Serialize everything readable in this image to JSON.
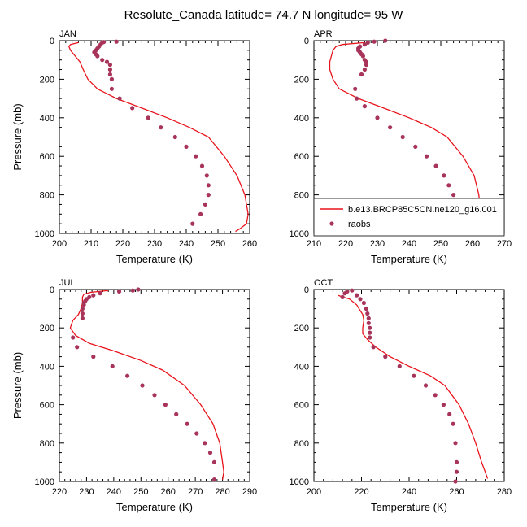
{
  "title": "Resolute_Canada  latitude= 74.7 N longitude= 95 W",
  "legend": {
    "model_label": "b.e13.BRCP85C5CN.ne120_g16.001",
    "obs_label": "raobs"
  },
  "colors": {
    "model": "#e8141c",
    "obs": "#a8345a"
  },
  "chart_data": [
    {
      "type": "line",
      "panel_title": "JAN",
      "xlabel": "Temperature (K)",
      "ylabel": "Pressure (mb)",
      "xlim": [
        200,
        260
      ],
      "ylim": [
        1000,
        0
      ],
      "xticks": [
        200,
        210,
        220,
        230,
        240,
        250,
        260
      ],
      "yticks": [
        0,
        200,
        400,
        600,
        800,
        1000
      ],
      "model": {
        "temperature": [
          206,
          203.5,
          203,
          203.5,
          205,
          206.5,
          207.5,
          209,
          212,
          218,
          226,
          234,
          241,
          247,
          252,
          256,
          258.5,
          259.5,
          259,
          257,
          255.5
        ],
        "pressure": [
          10,
          20,
          30,
          50,
          80,
          110,
          150,
          200,
          250,
          300,
          350,
          400,
          450,
          500,
          600,
          700,
          800,
          900,
          950,
          975,
          990
        ]
      },
      "obs": {
        "temperature": [
          218,
          214,
          213.5,
          213,
          212.5,
          212,
          211.5,
          211,
          211.5,
          212,
          213.5,
          215,
          216,
          216,
          216,
          216.5,
          216.5,
          219,
          223,
          228,
          232,
          236.5,
          240,
          243,
          245,
          246.5,
          247,
          247,
          246,
          244.5,
          242
        ],
        "pressure": [
          5,
          7,
          10,
          20,
          30,
          40,
          50,
          60,
          70,
          80,
          100,
          110,
          125,
          150,
          175,
          200,
          250,
          300,
          350,
          400,
          450,
          500,
          550,
          600,
          650,
          700,
          750,
          800,
          850,
          900,
          950
        ]
      }
    },
    {
      "type": "line",
      "panel_title": "APR",
      "xlabel": "Temperature (K)",
      "ylabel": "",
      "xlim": [
        210,
        270
      ],
      "ylim": [
        1000,
        0
      ],
      "xticks": [
        210,
        220,
        230,
        240,
        250,
        260,
        270
      ],
      "yticks": [
        0,
        200,
        400,
        600,
        800,
        1000
      ],
      "model": {
        "temperature": [
          226,
          219,
          217,
          216,
          215.5,
          215,
          215,
          216,
          218,
          224,
          232,
          240,
          247,
          252,
          257,
          260.5,
          262,
          262.5,
          262,
          260,
          258.5
        ],
        "pressure": [
          10,
          20,
          30,
          50,
          80,
          110,
          150,
          200,
          250,
          300,
          350,
          400,
          450,
          500,
          600,
          700,
          800,
          900,
          950,
          975,
          990
        ]
      },
      "obs": {
        "temperature": [
          232.5,
          229,
          227,
          226,
          224.5,
          224,
          224,
          224.5,
          225,
          225.5,
          226,
          226.5,
          226.5,
          226,
          225,
          223,
          223.5,
          226,
          230,
          234,
          238,
          242,
          245.5,
          248.5,
          251,
          252.5,
          254,
          254.5,
          254,
          253,
          251
        ],
        "pressure": [
          0,
          5,
          10,
          20,
          30,
          40,
          50,
          60,
          70,
          80,
          100,
          110,
          125,
          150,
          175,
          250,
          300,
          340,
          400,
          450,
          500,
          550,
          600,
          650,
          700,
          750,
          800,
          850,
          900,
          950,
          1000
        ]
      }
    },
    {
      "type": "line",
      "panel_title": "JUL",
      "xlabel": "Temperature (K)",
      "ylabel": "Pressure (mb)",
      "xlim": [
        220,
        290
      ],
      "ylim": [
        1000,
        0
      ],
      "xticks": [
        220,
        230,
        240,
        250,
        260,
        270,
        280,
        290
      ],
      "yticks": [
        0,
        200,
        400,
        600,
        800,
        1000
      ],
      "model": {
        "temperature": [
          238,
          231.5,
          229,
          228.5,
          228.5,
          228,
          227,
          225,
          224,
          226,
          231,
          240,
          250,
          258,
          266,
          272,
          276.5,
          279,
          280,
          280.5,
          280
        ],
        "pressure": [
          5,
          15,
          25,
          40,
          70,
          100,
          130,
          160,
          200,
          240,
          280,
          320,
          370,
          420,
          500,
          600,
          700,
          800,
          900,
          950,
          990
        ]
      },
      "obs": {
        "temperature": [
          249,
          247,
          242,
          235,
          232.5,
          231,
          230,
          229.5,
          229,
          229,
          228.5,
          228.5,
          228.5,
          225,
          226.5,
          232.5,
          239.5,
          245,
          250.5,
          255,
          259,
          263,
          267,
          270.5,
          273.5,
          275.5,
          277,
          277
        ],
        "pressure": [
          0,
          5,
          10,
          20,
          30,
          40,
          50,
          60,
          70,
          80,
          100,
          125,
          150,
          250,
          300,
          350,
          400,
          450,
          500,
          550,
          600,
          650,
          700,
          750,
          800,
          850,
          900,
          990
        ]
      }
    },
    {
      "type": "line",
      "panel_title": "OCT",
      "xlabel": "Temperature (K)",
      "ylabel": "",
      "xlim": [
        200,
        280
      ],
      "ylim": [
        1000,
        0
      ],
      "xticks": [
        200,
        220,
        240,
        260,
        280
      ],
      "yticks": [
        0,
        200,
        400,
        600,
        800,
        1000
      ],
      "model": {
        "temperature": [
          210,
          215,
          218,
          219.5,
          220.5,
          221,
          220.5,
          220.5,
          222.5,
          226,
          232,
          240,
          249,
          255,
          261,
          265,
          268,
          270.5,
          272,
          273
        ],
        "pressure": [
          30,
          50,
          80,
          110,
          130,
          160,
          200,
          230,
          260,
          300,
          350,
          400,
          450,
          500,
          600,
          700,
          800,
          900,
          950,
          985
        ]
      },
      "obs": {
        "temperature": [
          212,
          213,
          214,
          216,
          218,
          219.5,
          221,
          222,
          222.5,
          223,
          223,
          223.5,
          223.5,
          223.5,
          225,
          230,
          236,
          242,
          247,
          251,
          254.5,
          257,
          258.5,
          259.5,
          260,
          260,
          259.5
        ],
        "pressure": [
          40,
          20,
          10,
          5,
          30,
          50,
          70,
          100,
          125,
          150,
          175,
          200,
          225,
          250,
          300,
          350,
          400,
          450,
          500,
          550,
          600,
          650,
          700,
          800,
          900,
          950,
          1000
        ]
      }
    }
  ]
}
